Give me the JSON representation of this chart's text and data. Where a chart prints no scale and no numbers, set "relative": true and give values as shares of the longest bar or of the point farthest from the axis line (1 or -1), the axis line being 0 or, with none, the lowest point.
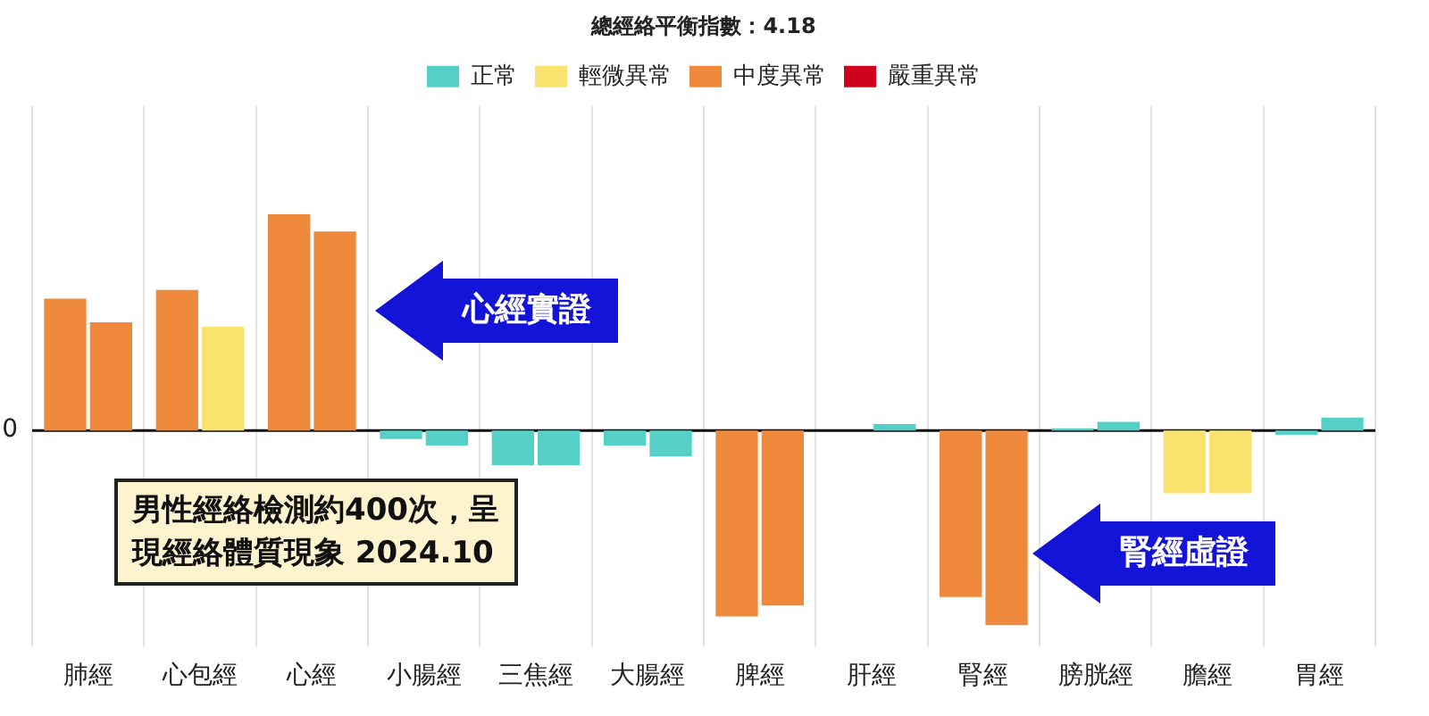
{
  "chart_data": {
    "type": "bar",
    "title": "總經絡平衡指數：4.18",
    "relative": true,
    "grid": "x",
    "legend": "top",
    "categories": [
      "肺經",
      "心包經",
      "心經",
      "小腸經",
      "三焦經",
      "大腸經",
      "脾經",
      "肝經",
      "腎經",
      "膀胱經",
      "膽經",
      "胃經"
    ],
    "series": [
      {
        "values": [
          0.61,
          0.65,
          1,
          -0.04,
          -0.16,
          -0.07,
          -0.86,
          0,
          -0.77,
          0.01,
          -0.29,
          -0.02
        ],
        "colors": [
          "#ef8a3d",
          "#ef8a3d",
          "#ef8a3d",
          "#55d0c6",
          "#55d0c6",
          "#55d0c6",
          "#ef8a3d",
          "#55d0c6",
          "#ef8a3d",
          "#55d0c6",
          "#f9e36e",
          "#55d0c6"
        ]
      },
      {
        "values": [
          0.5,
          0.48,
          0.92,
          -0.07,
          -0.16,
          -0.12,
          -0.81,
          0.03,
          -0.9,
          0.04,
          -0.29,
          0.06
        ],
        "colors": [
          "#ef8a3d",
          "#f9e36e",
          "#ef8a3d",
          "#55d0c6",
          "#55d0c6",
          "#55d0c6",
          "#ef8a3d",
          "#55d0c6",
          "#ef8a3d",
          "#55d0c6",
          "#f9e36e",
          "#55d0c6"
        ]
      },
      {
        "name": "正常",
        "color": "#55d0c6",
        "values": [
          null,
          null,
          null,
          null,
          null,
          null,
          null,
          null,
          null,
          null,
          null,
          null
        ]
      },
      {
        "name": "輕微異常",
        "color": "#f9e36e",
        "values": [
          null,
          null,
          null,
          null,
          null,
          null,
          null,
          null,
          null,
          null,
          null,
          null
        ]
      },
      {
        "name": "中度異常",
        "color": "#ef8a3d",
        "values": [
          null,
          null,
          null,
          null,
          null,
          null,
          null,
          null,
          null,
          null,
          null,
          null
        ]
      },
      {
        "name": "嚴重異常",
        "color": "#d0021b",
        "values": [
          null,
          null,
          null,
          null,
          null,
          null,
          null,
          null,
          null,
          null,
          null,
          null
        ]
      }
    ],
    "ref_lines": [
      {
        "axis": "y",
        "value": 0,
        "label": "0"
      }
    ],
    "annotations": [
      "男性經絡檢測約400次，呈現經絡體質現象 2024.10",
      "心經實證",
      "腎經虛證"
    ]
  }
}
